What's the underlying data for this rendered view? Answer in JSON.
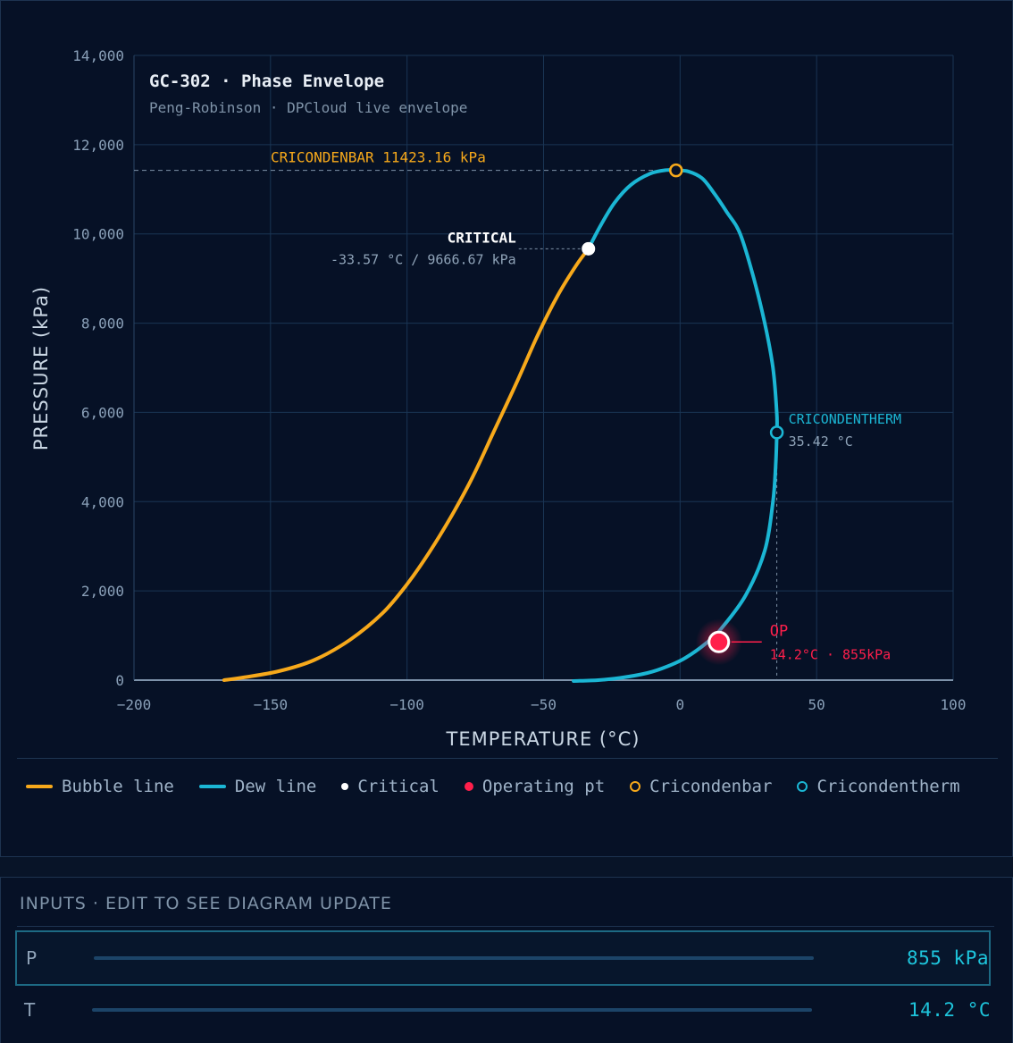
{
  "colors": {
    "bubble": "#f7a91b",
    "dew": "#1bb6d4",
    "critical": "#ffffff",
    "operating": "#ff1f4b",
    "cricondenbar": "#f7a91b",
    "cricondentherm": "#1bb6d4",
    "grid": "#1a3554",
    "axis": "#8aa0b8"
  },
  "chart_data": {
    "type": "line",
    "title": "GC-302 · Phase Envelope",
    "subtitle": "Peng-Robinson · DPCloud live envelope",
    "xlabel": "TEMPERATURE (°C)",
    "ylabel": "PRESSURE (kPa)",
    "xlim": [
      -200,
      100
    ],
    "ylim": [
      0,
      14000
    ],
    "x_ticks": [
      -200,
      -150,
      -100,
      -50,
      0,
      50,
      100
    ],
    "x_tick_labels": [
      "−200",
      "−150",
      "−100",
      "−50",
      "0",
      "50",
      "100"
    ],
    "y_ticks": [
      0,
      2000,
      4000,
      6000,
      8000,
      10000,
      12000,
      14000
    ],
    "y_tick_labels": [
      "0",
      "2,000",
      "4,000",
      "6,000",
      "8,000",
      "10,000",
      "12,000",
      "14,000"
    ],
    "grid": true,
    "series": [
      {
        "name": "Bubble line",
        "x": [
          -167,
          -160,
          -147,
          -134,
          -121,
          -109,
          -100,
          -92,
          -84,
          -76,
          -68,
          -60,
          -52,
          -45,
          -38,
          -33.57
        ],
        "y": [
          0,
          60,
          200,
          450,
          900,
          1500,
          2150,
          2850,
          3650,
          4550,
          5600,
          6650,
          7750,
          8600,
          9300,
          9666.67
        ]
      },
      {
        "name": "Dew line",
        "x": [
          -33.57,
          -29,
          -24,
          -18,
          -11,
          -5,
          -1.5,
          3,
          8,
          12,
          17,
          22,
          27,
          31,
          34,
          35.4,
          35.42,
          35,
          34,
          31,
          24,
          15,
          10,
          2,
          -5,
          -12,
          -22,
          -30,
          -39
        ],
        "y": [
          9666.67,
          10200,
          10700,
          11100,
          11350,
          11430,
          11423.16,
          11400,
          11250,
          10950,
          10500,
          10000,
          9000,
          8000,
          7000,
          6000,
          5550,
          4800,
          4000,
          2900,
          1900,
          1150,
          850,
          500,
          300,
          160,
          50,
          0,
          -20
        ]
      }
    ],
    "points": {
      "critical": {
        "x": -33.57,
        "y": 9666.67
      },
      "cricondenbar": {
        "x": -1.5,
        "y": 11423.16
      },
      "cricondentherm": {
        "x": 35.42,
        "y": 5550
      },
      "operating": {
        "x": 14.2,
        "y": 855
      }
    },
    "annotations": {
      "cricondenbar": "CRICONDENBAR 11423.16 kPa",
      "critical_title": "CRITICAL",
      "critical_value": "-33.57 °C / 9666.67 kPa",
      "cricondentherm_title": "CRICONDENTHERM",
      "cricondentherm_value": "35.42 °C",
      "op_title": "OP",
      "op_value": "14.2°C · 855kPa"
    },
    "legend": {
      "placement": "bottom",
      "items": [
        "Bubble line",
        "Dew line",
        "Critical",
        "Operating pt",
        "Cricondenbar",
        "Cricondentherm"
      ]
    }
  },
  "legend": {
    "bubble": "Bubble line",
    "dew": "Dew line",
    "critical": "Critical",
    "operating": "Operating pt",
    "cricondenbar": "Cricondenbar",
    "cricondentherm": "Cricondentherm"
  },
  "inputs": {
    "title": "INPUTS · EDIT TO SEE DIAGRAM UPDATE",
    "pressure": {
      "label": "P",
      "value": "855 kPa"
    },
    "temperature": {
      "label": "T",
      "value": "14.2 °C"
    }
  }
}
